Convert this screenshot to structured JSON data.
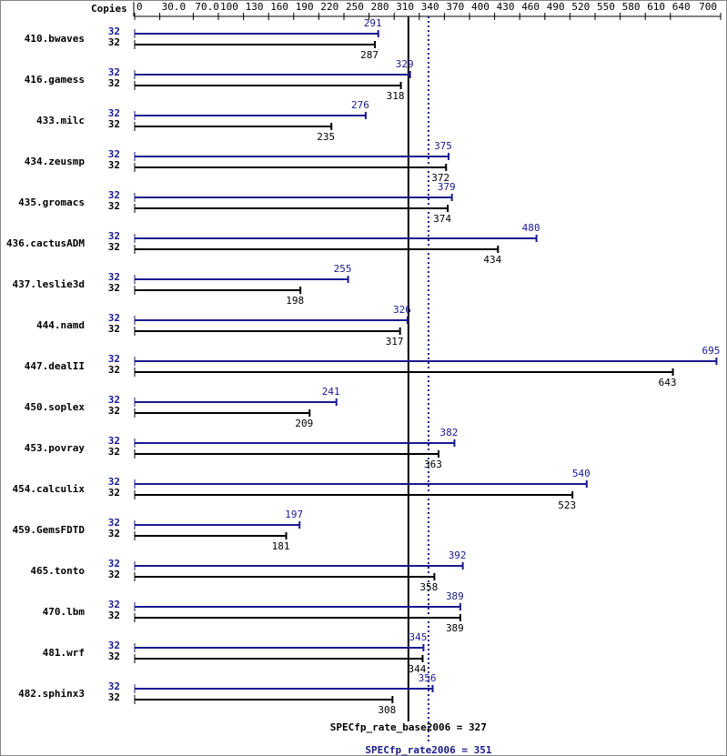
{
  "chart_data": {
    "type": "bar",
    "copies_label": "Copies",
    "categories": [
      "410.bwaves",
      "416.gamess",
      "433.milc",
      "434.zeusmp",
      "435.gromacs",
      "436.cactusADM",
      "437.leslie3d",
      "444.namd",
      "447.dealII",
      "450.soplex",
      "453.povray",
      "454.calculix",
      "459.GemsFDTD",
      "465.tonto",
      "470.lbm",
      "481.wrf",
      "482.sphinx3"
    ],
    "series": [
      {
        "color": "#191991",
        "copies": [
          32,
          32,
          32,
          32,
          32,
          32,
          32,
          32,
          32,
          32,
          32,
          32,
          32,
          32,
          32,
          32,
          32
        ],
        "values": [
          291,
          329,
          276,
          375,
          379,
          480,
          255,
          326,
          695,
          241,
          382,
          540,
          197,
          392,
          389,
          345,
          356
        ]
      },
      {
        "color": "#000000",
        "copies": [
          32,
          32,
          32,
          32,
          32,
          32,
          32,
          32,
          32,
          32,
          32,
          32,
          32,
          32,
          32,
          32,
          32
        ],
        "values": [
          287,
          318,
          235,
          372,
          374,
          434,
          198,
          317,
          643,
          209,
          363,
          523,
          181,
          358,
          389,
          344,
          308
        ]
      }
    ],
    "xlim": [
      0,
      700
    ],
    "xticks": [
      0,
      {
        "value": 30,
        "label": "30.0"
      },
      {
        "value": 70,
        "label": "70.0"
      },
      100,
      130,
      160,
      190,
      220,
      250,
      280,
      310,
      340,
      370,
      400,
      430,
      460,
      490,
      520,
      550,
      580,
      610,
      640,
      700
    ],
    "reference_lines": [
      {
        "value": 327,
        "label": "SPECfp_rate_base2006 = 327",
        "color": "#000000",
        "dotted": false
      },
      {
        "value": 351,
        "label": "SPECfp_rate2006 = 351",
        "color": "#191991",
        "dotted": true
      }
    ]
  }
}
